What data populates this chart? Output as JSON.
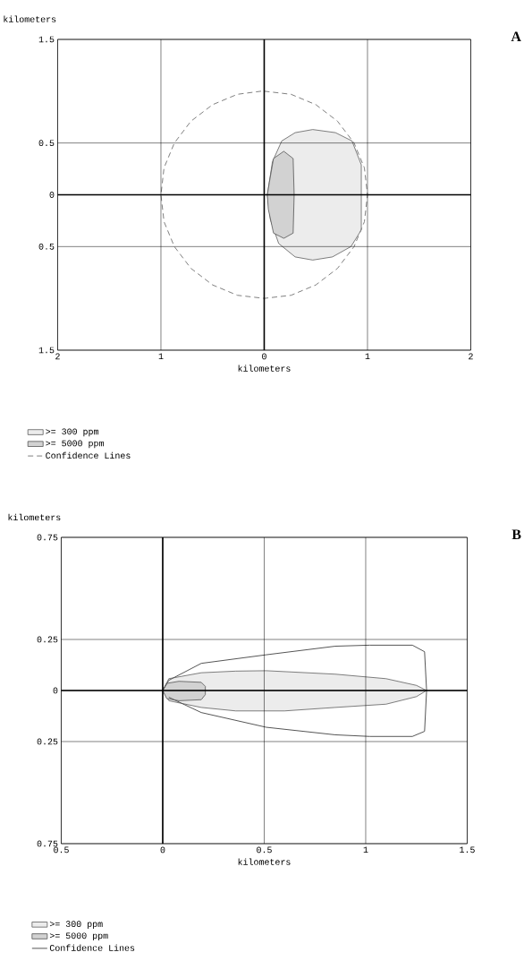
{
  "chart_data": [
    {
      "type": "area",
      "xlabel": "kilometers",
      "ylabel": "kilometers",
      "annotations": [
        "A"
      ],
      "xlim": [
        -2,
        2
      ],
      "ylim": [
        -1.5,
        1.5
      ],
      "xticks": [
        {
          "value": -2,
          "label": "2"
        },
        {
          "value": -1,
          "label": "1"
        },
        0,
        1,
        2
      ],
      "yticks": [
        {
          "value": -1.5,
          "label": "1.5"
        },
        {
          "value": -0.5,
          "label": "0.5"
        },
        0,
        0.5,
        1.5
      ],
      "grid": true,
      "legend": "bottom",
      "series": [
        {
          "name": ">= 300 ppm",
          "color": "#ececec",
          "x": [
            0.03,
            0.08,
            0.17,
            0.3,
            0.47,
            0.69,
            0.85,
            0.94,
            0.94,
            0.84,
            0.66,
            0.47,
            0.3,
            0.14,
            0.06,
            0.03
          ],
          "values": [
            0,
            0.32,
            0.52,
            0.6,
            0.63,
            0.6,
            0.52,
            0.29,
            -0.34,
            -0.5,
            -0.6,
            -0.63,
            -0.6,
            -0.47,
            -0.24,
            0
          ]
        },
        {
          "name": ">= 5000 ppm",
          "color": "#d2d2d2",
          "x": [
            0.03,
            0.05,
            0.09,
            0.19,
            0.28,
            0.29,
            0.28,
            0.19,
            0.09,
            0.04,
            0.03
          ],
          "values": [
            0,
            0.12,
            0.35,
            0.42,
            0.35,
            0,
            -0.37,
            -0.42,
            -0.37,
            -0.14,
            0
          ]
        },
        {
          "name": "Confidence Lines",
          "type": "line",
          "color": "#808080",
          "line_style": "dashed",
          "x": [
            0,
            0.26,
            0.5,
            0.71,
            0.87,
            0.97,
            1.0,
            0.97,
            0.87,
            0.71,
            0.5,
            0.26,
            0,
            -0.26,
            -0.5,
            -0.71,
            -0.87,
            -0.97,
            -1.0,
            -0.97,
            -0.87,
            -0.71,
            -0.5,
            -0.26,
            -0.03
          ],
          "values": [
            1.0,
            0.97,
            0.87,
            0.71,
            0.5,
            0.26,
            0,
            -0.26,
            -0.5,
            -0.71,
            -0.87,
            -0.97,
            -1.0,
            -0.97,
            -0.87,
            -0.71,
            -0.5,
            -0.26,
            0,
            0.26,
            0.5,
            0.71,
            0.87,
            0.97,
            1.0
          ]
        }
      ]
    },
    {
      "type": "area",
      "xlabel": "kilometers",
      "ylabel": "kilometers",
      "annotations": [
        "B"
      ],
      "xlim": [
        -0.5,
        1.5
      ],
      "ylim": [
        -0.75,
        0.75
      ],
      "xticks": [
        {
          "value": -0.5,
          "label": "0.5"
        },
        0,
        0.5,
        1,
        1.5
      ],
      "yticks": [
        {
          "value": -0.75,
          "label": "0.75"
        },
        {
          "value": -0.25,
          "label": "0.25"
        },
        0,
        0.25,
        0.75
      ],
      "grid": true,
      "legend": "bottom",
      "series": [
        {
          "name": ">= 300 ppm",
          "color": "#ececec",
          "x": [
            0,
            0.03,
            0.19,
            0.36,
            0.51,
            0.85,
            1.1,
            1.25,
            1.3,
            1.25,
            1.1,
            0.85,
            0.6,
            0.36,
            0.19,
            0.03,
            0
          ],
          "values": [
            0,
            0.058,
            0.087,
            0.095,
            0.097,
            0.08,
            0.058,
            0.025,
            0,
            -0.03,
            -0.067,
            -0.083,
            -0.1,
            -0.1,
            -0.083,
            -0.05,
            0
          ]
        },
        {
          "name": ">= 5000 ppm",
          "color": "#d2d2d2",
          "x": [
            0,
            0.02,
            0.08,
            0.19,
            0.21,
            0.21,
            0.19,
            0.08,
            0.02,
            0
          ],
          "values": [
            0,
            0.035,
            0.045,
            0.04,
            0.02,
            -0.02,
            -0.045,
            -0.05,
            -0.04,
            0
          ]
        },
        {
          "name": "Confidence Lines",
          "type": "line",
          "color": "#555555",
          "line_style": "solid",
          "x": [
            0,
            0.03,
            0.19,
            0.51,
            0.85,
            1.02,
            1.23,
            1.29,
            1.3,
            1.29,
            1.23,
            1.02,
            0.85,
            0.51,
            0.19,
            0.03
          ],
          "values": [
            0,
            0.05,
            0.133,
            0.175,
            0.217,
            0.222,
            0.222,
            0.19,
            0,
            -0.2,
            -0.225,
            -0.225,
            -0.217,
            -0.18,
            -0.108,
            -0.033
          ]
        }
      ]
    }
  ]
}
